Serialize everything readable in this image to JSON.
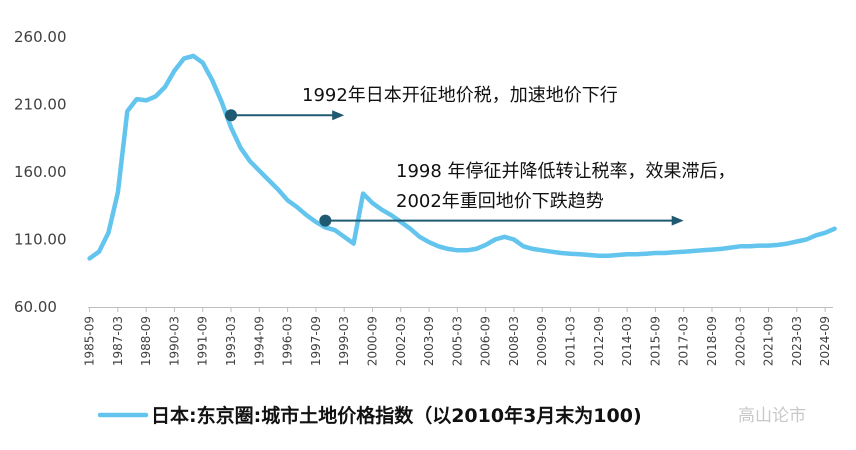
{
  "chart_data": {
    "type": "line",
    "title": "",
    "xlabel": "",
    "ylabel": "",
    "ylim": [
      60,
      260
    ],
    "yticks": [
      "260.00",
      "210.00",
      "160.00",
      "110.00",
      "60.00"
    ],
    "ytick_values": [
      260,
      210,
      160,
      110,
      60
    ],
    "xtick_labels": [
      "1985-09",
      "1987-03",
      "1988-09",
      "1990-03",
      "1991-09",
      "1993-03",
      "1994-09",
      "1996-03",
      "1997-09",
      "1999-03",
      "2000-09",
      "2002-03",
      "2003-09",
      "2005-03",
      "2006-09",
      "2008-03",
      "2009-09",
      "2011-03",
      "2012-09",
      "2014-03",
      "2015-09",
      "2017-03",
      "2018-09",
      "2020-03",
      "2021-09",
      "2023-03",
      "2024-09"
    ],
    "grid": false,
    "legend_position": "bottom",
    "series": [
      {
        "name": "日本:东京圈:城市土地价格指数（以2010年3月末为100)",
        "color": "#63c5ee",
        "x": [
          "1985-09",
          "1986-03",
          "1986-09",
          "1987-03",
          "1987-09",
          "1988-03",
          "1988-09",
          "1989-03",
          "1989-09",
          "1990-03",
          "1990-09",
          "1991-03",
          "1991-09",
          "1992-03",
          "1992-09",
          "1993-03",
          "1993-09",
          "1994-03",
          "1994-09",
          "1995-03",
          "1995-09",
          "1996-03",
          "1996-09",
          "1997-03",
          "1997-09",
          "1998-03",
          "1998-09",
          "1999-03",
          "1999-09",
          "2000-03",
          "2000-09",
          "2001-03",
          "2001-09",
          "2002-03",
          "2002-09",
          "2003-03",
          "2003-09",
          "2004-03",
          "2004-09",
          "2005-03",
          "2005-09",
          "2006-03",
          "2006-09",
          "2007-03",
          "2007-09",
          "2008-03",
          "2008-09",
          "2009-03",
          "2009-09",
          "2010-03",
          "2010-09",
          "2011-03",
          "2011-09",
          "2012-03",
          "2012-09",
          "2013-03",
          "2013-09",
          "2014-03",
          "2014-09",
          "2015-03",
          "2015-09",
          "2016-03",
          "2016-09",
          "2017-03",
          "2017-09",
          "2018-03",
          "2018-09",
          "2019-03",
          "2019-09",
          "2020-03",
          "2020-09",
          "2021-03",
          "2021-09",
          "2022-03",
          "2022-09",
          "2023-03",
          "2023-09",
          "2024-03",
          "2024-09",
          "2025-03"
        ],
        "values": [
          96,
          101,
          115,
          145,
          205,
          214,
          213,
          216,
          223,
          235,
          244,
          246,
          241,
          228,
          212,
          193,
          178,
          168,
          161,
          154,
          147,
          139,
          134,
          128,
          123,
          119,
          117,
          112,
          107,
          144,
          137,
          132,
          128,
          123,
          118,
          112,
          108,
          105,
          103,
          102,
          102,
          103,
          106,
          110,
          112,
          110,
          105,
          103,
          102,
          101,
          100,
          99.5,
          99,
          98.5,
          98,
          98,
          98.5,
          99,
          99,
          99.5,
          100,
          100,
          100.5,
          101,
          101.5,
          102,
          102.5,
          103,
          104,
          105,
          105,
          105.5,
          105.5,
          106,
          107,
          108.5,
          110,
          113,
          115,
          118
        ]
      }
    ],
    "annotations": [
      {
        "text": "1992年日本开征地价税，加速地价下行",
        "point_x": "1993-03",
        "point_y": 202,
        "arrow_to_x": "1999-03"
      },
      {
        "lines": [
          "1998 年停征并降低转让税率，效果滞后，",
          "2002年重回地价下跌趋势"
        ],
        "point_x": "1998-03",
        "point_y": 124,
        "arrow_to_x": "2017-03"
      }
    ]
  },
  "watermark": "高山论市"
}
